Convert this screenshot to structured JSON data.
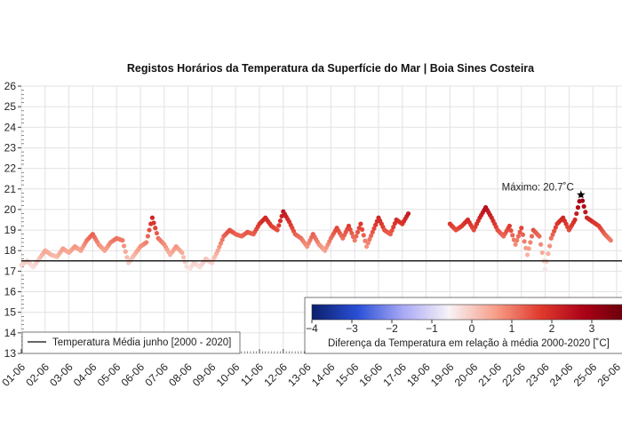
{
  "chart_data": {
    "type": "scatter",
    "title": "Registos Horários da Temperatura da Superfície do Mar | Boia Sines Costeira",
    "xlabel": "",
    "ylabel": "",
    "ylim": [
      13,
      26
    ],
    "yticks": [
      "13",
      "14",
      "15",
      "16",
      "17",
      "18",
      "19",
      "20",
      "21",
      "22",
      "23",
      "24",
      "25",
      "26"
    ],
    "xticks": [
      "01-06",
      "02-06",
      "03-06",
      "04-06",
      "05-06",
      "06-06",
      "07-06",
      "08-06",
      "09-06",
      "10-06",
      "11-06",
      "12-06",
      "13-06",
      "14-06",
      "15-06",
      "16-06",
      "17-06",
      "18-06",
      "19-06",
      "20-06",
      "21-06",
      "22-06",
      "23-06",
      "24-06",
      "25-06",
      "26-06"
    ],
    "grid": true,
    "series": [
      {
        "start": "01-06 00:00",
        "interval_hours": 6,
        "values": [
          17.3,
          17.5,
          17.2,
          17.6,
          18.0,
          17.8,
          17.7,
          18.1,
          17.9,
          18.2,
          18.0,
          18.5,
          18.8,
          18.3,
          18.0,
          18.4,
          18.6,
          18.5,
          17.4,
          17.8,
          18.2,
          18.4,
          19.6,
          18.6,
          18.3,
          17.8,
          18.2,
          17.9,
          17.0,
          17.4,
          17.2,
          17.6,
          17.4,
          18.0,
          18.7,
          19.0,
          18.8,
          18.7,
          18.9,
          18.8,
          19.3,
          19.6,
          19.2,
          19.0,
          19.9,
          19.4,
          18.8,
          18.6,
          18.2,
          18.8,
          18.3,
          18.0,
          18.6,
          19.1,
          18.6,
          19.2,
          18.5,
          19.3,
          18.2,
          18.9,
          19.6,
          19.0,
          18.8,
          19.5,
          19.3,
          19.8,
          null,
          null,
          null,
          null,
          null,
          null,
          19.3,
          19.0,
          19.2,
          19.5,
          19.0,
          19.6,
          20.1,
          19.6,
          19.0,
          18.7,
          19.2,
          18.3,
          19.1,
          17.8,
          19.0,
          18.7,
          17.1,
          18.6,
          19.3,
          19.6,
          19.0,
          19.5,
          20.7,
          19.6,
          19.4,
          19.2,
          18.8,
          18.5
        ]
      }
    ],
    "reference_line": {
      "value": 17.5,
      "label": "Temperatura Média junho [2000 - 2020]",
      "color": "#222222"
    },
    "annotation": {
      "label": "Máximo: 20.7˚C",
      "value": 20.7
    },
    "colorbar": {
      "label": "Diferença da Temperatura em relação à média 2000-2020 [˚C]",
      "range": [
        -4,
        4
      ],
      "ticks": [
        "−4",
        "−3",
        "−2",
        "−1",
        "0",
        "1",
        "2",
        "3"
      ],
      "colors": [
        "#0b1f6b",
        "#2a4fd6",
        "#a9a9f5",
        "#f7f3f7",
        "#f7a08a",
        "#e03a2e",
        "#a80016",
        "#5c0008"
      ]
    },
    "legend_placement": "bottom-left"
  }
}
